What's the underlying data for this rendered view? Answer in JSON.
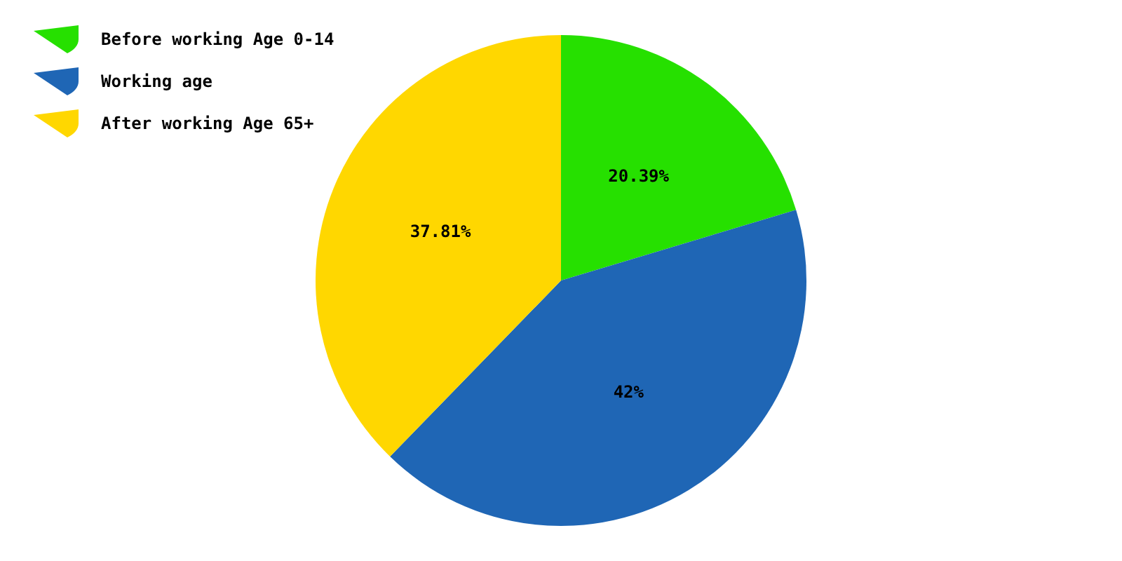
{
  "chart_data": {
    "type": "pie",
    "categories": [
      "Before working Age 0-14",
      "Working age",
      "After working Age 65+"
    ],
    "values": [
      20.39,
      42,
      37.81
    ],
    "colors": [
      "#26e000",
      "#1f66b5",
      "#ffd700"
    ],
    "value_labels": [
      "20.39%",
      "42%",
      "37.81%"
    ],
    "legend": "top left"
  }
}
